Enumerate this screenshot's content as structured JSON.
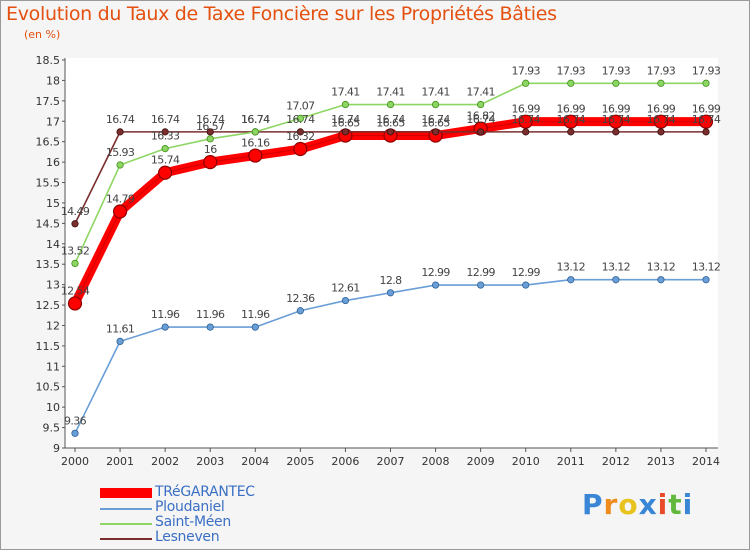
{
  "chart_data": {
    "type": "line",
    "title": "Evolution du Taux de Taxe Foncière sur les Propriétés Bâties",
    "unit_label": "(en %)",
    "x": [
      "2000",
      "2001",
      "2002",
      "2003",
      "2004",
      "2005",
      "2006",
      "2007",
      "2008",
      "2009",
      "2010",
      "2011",
      "2012",
      "2013",
      "2014"
    ],
    "ylim": [
      9,
      18.5
    ],
    "yticks": [
      "9",
      "9.5",
      "10",
      "10.5",
      "11",
      "11.5",
      "12",
      "12.5",
      "13",
      "13.5",
      "14",
      "14.5",
      "15",
      "15.5",
      "16",
      "16.5",
      "17",
      "17.5",
      "18",
      "18.5"
    ],
    "grid": false,
    "legend_position": "bottom-left",
    "series": [
      {
        "name": "TRéGARANTEC",
        "color": "#ff0000",
        "dark": "#8b0000",
        "style": "thick",
        "values": [
          12.54,
          14.79,
          15.74,
          16,
          16.16,
          16.32,
          16.65,
          16.65,
          16.65,
          16.82,
          16.99,
          16.99,
          16.99,
          16.99,
          16.99
        ],
        "labels": [
          "12.54",
          "14.79",
          "15.74",
          "16",
          "16.16",
          "16.32",
          "16.65",
          "16.65",
          "16.65",
          "16.82",
          "16.99",
          "16.99",
          "16.99",
          "16.99",
          "16.99"
        ]
      },
      {
        "name": "Ploudaniel",
        "color": "#6a9ed6",
        "dark": "#2d5f96",
        "style": "thin",
        "values": [
          9.36,
          11.61,
          11.96,
          11.96,
          11.96,
          12.36,
          12.61,
          12.8,
          12.99,
          12.99,
          12.99,
          13.12,
          13.12,
          13.12,
          13.12
        ],
        "labels": [
          "9.36",
          "11.61",
          "11.96",
          "11.96",
          "11.96",
          "12.36",
          "12.61",
          "12.8",
          "12.99",
          "12.99",
          "12.99",
          "13.12",
          "13.12",
          "13.12",
          "13.12"
        ]
      },
      {
        "name": "Saint-Méen",
        "color": "#8ed663",
        "dark": "#3e8f1a",
        "style": "thin",
        "values": [
          13.52,
          15.93,
          16.33,
          16.57,
          16.74,
          17.07,
          17.41,
          17.41,
          17.41,
          17.41,
          17.93,
          17.93,
          17.93,
          17.93,
          17.93
        ],
        "labels": [
          "13.52",
          "15.93",
          "16.33",
          "16.57",
          "16.74",
          "17.07",
          "17.41",
          "17.41",
          "17.41",
          "17.41",
          "17.93",
          "17.93",
          "17.93",
          "17.93",
          "17.93"
        ]
      },
      {
        "name": "Lesneven",
        "color": "#7a2e2e",
        "dark": "#3d0e0e",
        "style": "thin",
        "values": [
          14.49,
          16.74,
          16.74,
          16.74,
          16.74,
          16.74,
          16.74,
          16.74,
          16.74,
          16.74,
          16.74,
          16.74,
          16.74,
          16.74,
          16.74
        ],
        "labels": [
          "14.49",
          "16.74",
          "16.74",
          "16.74",
          "16.74",
          "16.74",
          "16.74",
          "16.74",
          "16.74",
          "16.74",
          "16.74",
          "16.74",
          "16.74",
          "16.74",
          "16.74"
        ]
      }
    ]
  },
  "logo": {
    "letters": [
      "P",
      "r",
      "o",
      "x",
      "i",
      "t",
      "i"
    ],
    "colors": [
      "#3a86d6",
      "#f08c1e",
      "#e8c31e",
      "#3a86d6",
      "#e84a2a",
      "#62b93d",
      "#3a86d6"
    ]
  }
}
